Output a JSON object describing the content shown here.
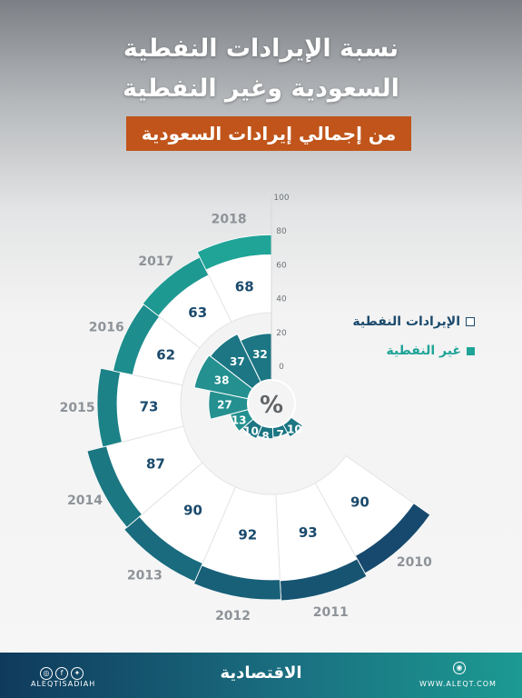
{
  "header": {
    "title_line1": "نسبة الإيرادات النفطية",
    "title_line2": "السعودية وغير النفطية",
    "subtitle": "من إجمالي إيرادات السعودية"
  },
  "legend": {
    "oil": "الإيرادات النفطية",
    "non_oil": "غير النفطية"
  },
  "center_symbol": "%",
  "chart_data": {
    "type": "radial-bar",
    "categories": [
      "2010",
      "2011",
      "2012",
      "2013",
      "2014",
      "2015",
      "2016",
      "2017",
      "2018"
    ],
    "series": [
      {
        "name": "الإيرادات النفطية",
        "values": [
          90,
          93,
          92,
          90,
          87,
          73,
          62,
          63,
          68
        ]
      },
      {
        "name": "غير النفطية",
        "values": [
          10,
          7,
          8,
          10,
          13,
          27,
          38,
          37,
          32
        ]
      }
    ],
    "scale_ticks": [
      "100",
      "80",
      "60",
      "40",
      "20",
      "0"
    ],
    "ylim": [
      0,
      100
    ]
  },
  "colors": {
    "oil_dark": "#16496d",
    "oil_light": "#1fa497",
    "non_oil_dark": "#1a6d80",
    "non_oil_light": "#2aa89b",
    "year_label": "#8e9399",
    "value_label": "#1b4a6c"
  },
  "footer": {
    "brand": "الاقتصادية",
    "handle": "ALEQTISADIAH",
    "site": "WWW.ALEQT.COM",
    "social_icons": [
      "instagram-icon",
      "facebook-icon",
      "twitter-icon"
    ]
  }
}
